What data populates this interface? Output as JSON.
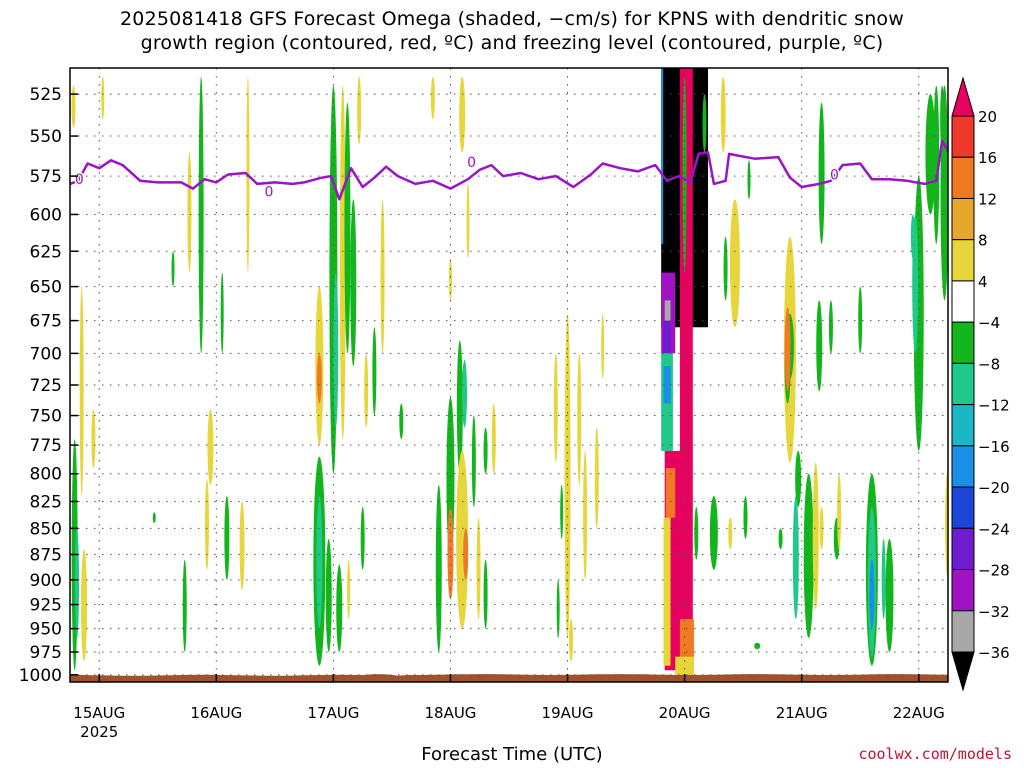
{
  "chart_data": {
    "type": "heatmap",
    "title_lines": [
      "2025081418 GFS Forecast Omega (shaded, −cm/s) for KPNS with dendritic snow",
      "growth region (contoured, red, ºC) and freezing level (contoured, purple, ºC)"
    ],
    "xlabel": "Forecast Time (UTC)",
    "ylabel": "",
    "x_ticks": [
      "15AUG",
      "16AUG",
      "17AUG",
      "18AUG",
      "19AUG",
      "20AUG",
      "21AUG",
      "22AUG"
    ],
    "x_tick_sub": "2025",
    "y_ticks": [
      525,
      550,
      575,
      600,
      625,
      650,
      675,
      700,
      725,
      750,
      775,
      800,
      825,
      850,
      875,
      900,
      925,
      950,
      975,
      1000
    ],
    "x_range_days": [
      -0.25,
      7.25
    ],
    "y_range_hpa": [
      510,
      1008
    ],
    "y_scale": "log",
    "grid": true,
    "colorbar": {
      "labels": [
        "20",
        "16",
        "12",
        "8",
        "4",
        "−4",
        "−8",
        "−12",
        "−16",
        "−20",
        "−24",
        "−28",
        "−32",
        "−36"
      ],
      "colors": [
        "#e8005f",
        "#ef3a2b",
        "#f07a24",
        "#e6a82c",
        "#e6d63c",
        "#ffffff",
        "#12b51b",
        "#1ec98a",
        "#1bb7c6",
        "#1a8fe6",
        "#1c45d9",
        "#6f1bd0",
        "#a012c6",
        "#a8a8a8",
        "#000000"
      ],
      "top_arrow_color": "#e8005f",
      "bottom_arrow_color": "#000000"
    },
    "freezing_level": {
      "color": "#9b13c9",
      "label": "0",
      "points": [
        [
          -0.25,
          580
        ],
        [
          -0.18,
          578
        ],
        [
          -0.1,
          567
        ],
        [
          0.0,
          570
        ],
        [
          0.1,
          565
        ],
        [
          0.2,
          568
        ],
        [
          0.35,
          578
        ],
        [
          0.5,
          579
        ],
        [
          0.7,
          579
        ],
        [
          0.8,
          583
        ],
        [
          0.9,
          577
        ],
        [
          1.0,
          579
        ],
        [
          1.1,
          574
        ],
        [
          1.25,
          573
        ],
        [
          1.35,
          580
        ],
        [
          1.5,
          579
        ],
        [
          1.65,
          580
        ],
        [
          1.75,
          579
        ],
        [
          1.9,
          576
        ],
        [
          1.98,
          575
        ],
        [
          2.05,
          590
        ],
        [
          2.15,
          570
        ],
        [
          2.25,
          582
        ],
        [
          2.35,
          576
        ],
        [
          2.45,
          569
        ],
        [
          2.55,
          575
        ],
        [
          2.7,
          580
        ],
        [
          2.85,
          578
        ],
        [
          3.0,
          583
        ],
        [
          3.15,
          577
        ],
        [
          3.25,
          571
        ],
        [
          3.35,
          568
        ],
        [
          3.45,
          575
        ],
        [
          3.6,
          573
        ],
        [
          3.75,
          577
        ],
        [
          3.9,
          575
        ],
        [
          4.05,
          582
        ],
        [
          4.2,
          574
        ],
        [
          4.3,
          567
        ],
        [
          4.45,
          570
        ],
        [
          4.6,
          572
        ],
        [
          4.75,
          568
        ],
        [
          4.85,
          578
        ],
        [
          4.95,
          575
        ],
        [
          5.05,
          579
        ],
        [
          5.12,
          561
        ],
        [
          5.2,
          560
        ],
        [
          5.25,
          580
        ],
        [
          5.35,
          578
        ],
        [
          5.38,
          561
        ],
        [
          5.45,
          562
        ],
        [
          5.6,
          564
        ],
        [
          5.8,
          563
        ],
        [
          5.9,
          576
        ],
        [
          6.0,
          582
        ],
        [
          6.15,
          580
        ],
        [
          6.25,
          578
        ],
        [
          6.35,
          568
        ],
        [
          6.5,
          567
        ],
        [
          6.6,
          577
        ],
        [
          6.75,
          577
        ],
        [
          6.9,
          578
        ],
        [
          7.05,
          580
        ],
        [
          7.15,
          578
        ],
        [
          7.2,
          553
        ],
        [
          7.3,
          565
        ],
        [
          7.4,
          566
        ]
      ]
    },
    "ground": {
      "color": "#a0522d"
    },
    "accent_colors": {
      "credit": "#c8102e"
    }
  },
  "credit": "coolwx.com/models"
}
